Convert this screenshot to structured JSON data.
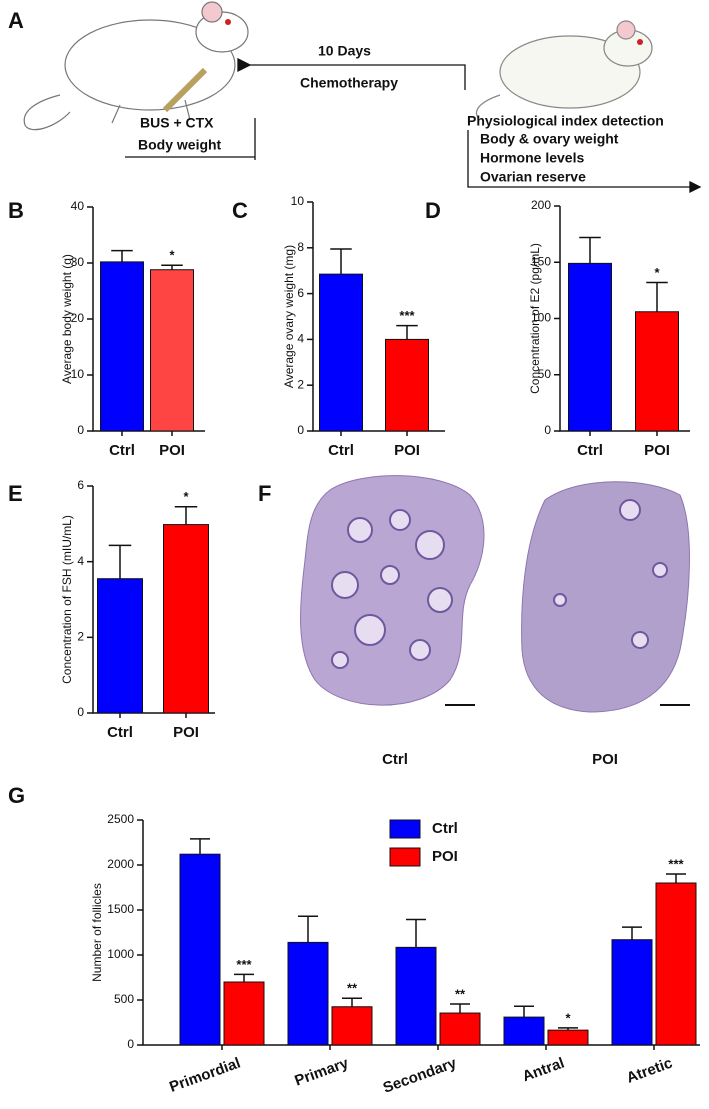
{
  "panel_a": {
    "panel": "A",
    "interval": "10 Days",
    "treatment": "Chemotherapy",
    "induction": "BUS + CTX",
    "baseline": "Body weight",
    "detection": "Physiological index detection",
    "detection_items": [
      "Body & ovary weight",
      "Hormone levels",
      "Ovarian reserve"
    ]
  },
  "panel_f": {
    "panel": "F",
    "labels": [
      "Ctrl",
      "POI"
    ]
  },
  "chart_data": [
    {
      "type": "bar",
      "panel": "B",
      "y_label": "Average body weight (g)",
      "categories": [
        "Ctrl",
        "POI"
      ],
      "values": [
        30.2,
        28.8
      ],
      "errors": [
        2.0,
        0.8
      ],
      "significance": [
        null,
        "*"
      ],
      "colors": [
        "#0000ff",
        "#ff4444"
      ],
      "ylim": [
        0,
        40
      ],
      "yticks": [
        0,
        10,
        20,
        30,
        40
      ]
    },
    {
      "type": "bar",
      "panel": "C",
      "y_label": "Average ovary  weight (mg)",
      "categories": [
        "Ctrl",
        "POI"
      ],
      "values": [
        6.85,
        4.0
      ],
      "errors": [
        1.1,
        0.6
      ],
      "significance": [
        null,
        "***"
      ],
      "colors": [
        "#0000ff",
        "#ff0000"
      ],
      "ylim": [
        0,
        10
      ],
      "yticks": [
        0,
        2,
        4,
        6,
        8,
        10
      ]
    },
    {
      "type": "bar",
      "panel": "D",
      "y_label": "Concentration of E2  (pg/mL)",
      "categories": [
        "Ctrl",
        "POI"
      ],
      "values": [
        149,
        106
      ],
      "errors": [
        23,
        26
      ],
      "significance": [
        null,
        "*"
      ],
      "colors": [
        "#0000ff",
        "#ff0000"
      ],
      "ylim": [
        0,
        200
      ],
      "yticks": [
        0,
        50,
        100,
        150,
        200
      ]
    },
    {
      "type": "bar",
      "panel": "E",
      "y_label": "Concentration of FSH  (mIU/mL)",
      "categories": [
        "Ctrl",
        "POI"
      ],
      "values": [
        3.55,
        4.98
      ],
      "errors": [
        0.88,
        0.47
      ],
      "significance": [
        null,
        "*"
      ],
      "colors": [
        "#0000ff",
        "#ff0000"
      ],
      "ylim": [
        0,
        6
      ],
      "yticks": [
        0,
        2,
        4,
        6
      ]
    },
    {
      "type": "grouped_bar",
      "panel": "G",
      "y_label": "Number of follicles",
      "categories": [
        "Primordial",
        "Primary",
        "Secondary",
        "Antral",
        "Atretic"
      ],
      "series": [
        {
          "name": "Ctrl",
          "color": "#0000ff",
          "values": [
            2120,
            1140,
            1085,
            310,
            1170
          ],
          "errors": [
            170,
            290,
            310,
            120,
            140
          ],
          "significance": [
            null,
            null,
            null,
            null,
            null
          ]
        },
        {
          "name": "POI",
          "color": "#ff0000",
          "values": [
            700,
            425,
            355,
            165,
            1800
          ],
          "errors": [
            85,
            95,
            100,
            25,
            100
          ],
          "significance": [
            "***",
            "**",
            "**",
            "*",
            "***"
          ]
        }
      ],
      "ylim": [
        0,
        2500
      ],
      "yticks": [
        0,
        500,
        1000,
        1500,
        2000,
        2500
      ],
      "legend": "top-center"
    }
  ]
}
